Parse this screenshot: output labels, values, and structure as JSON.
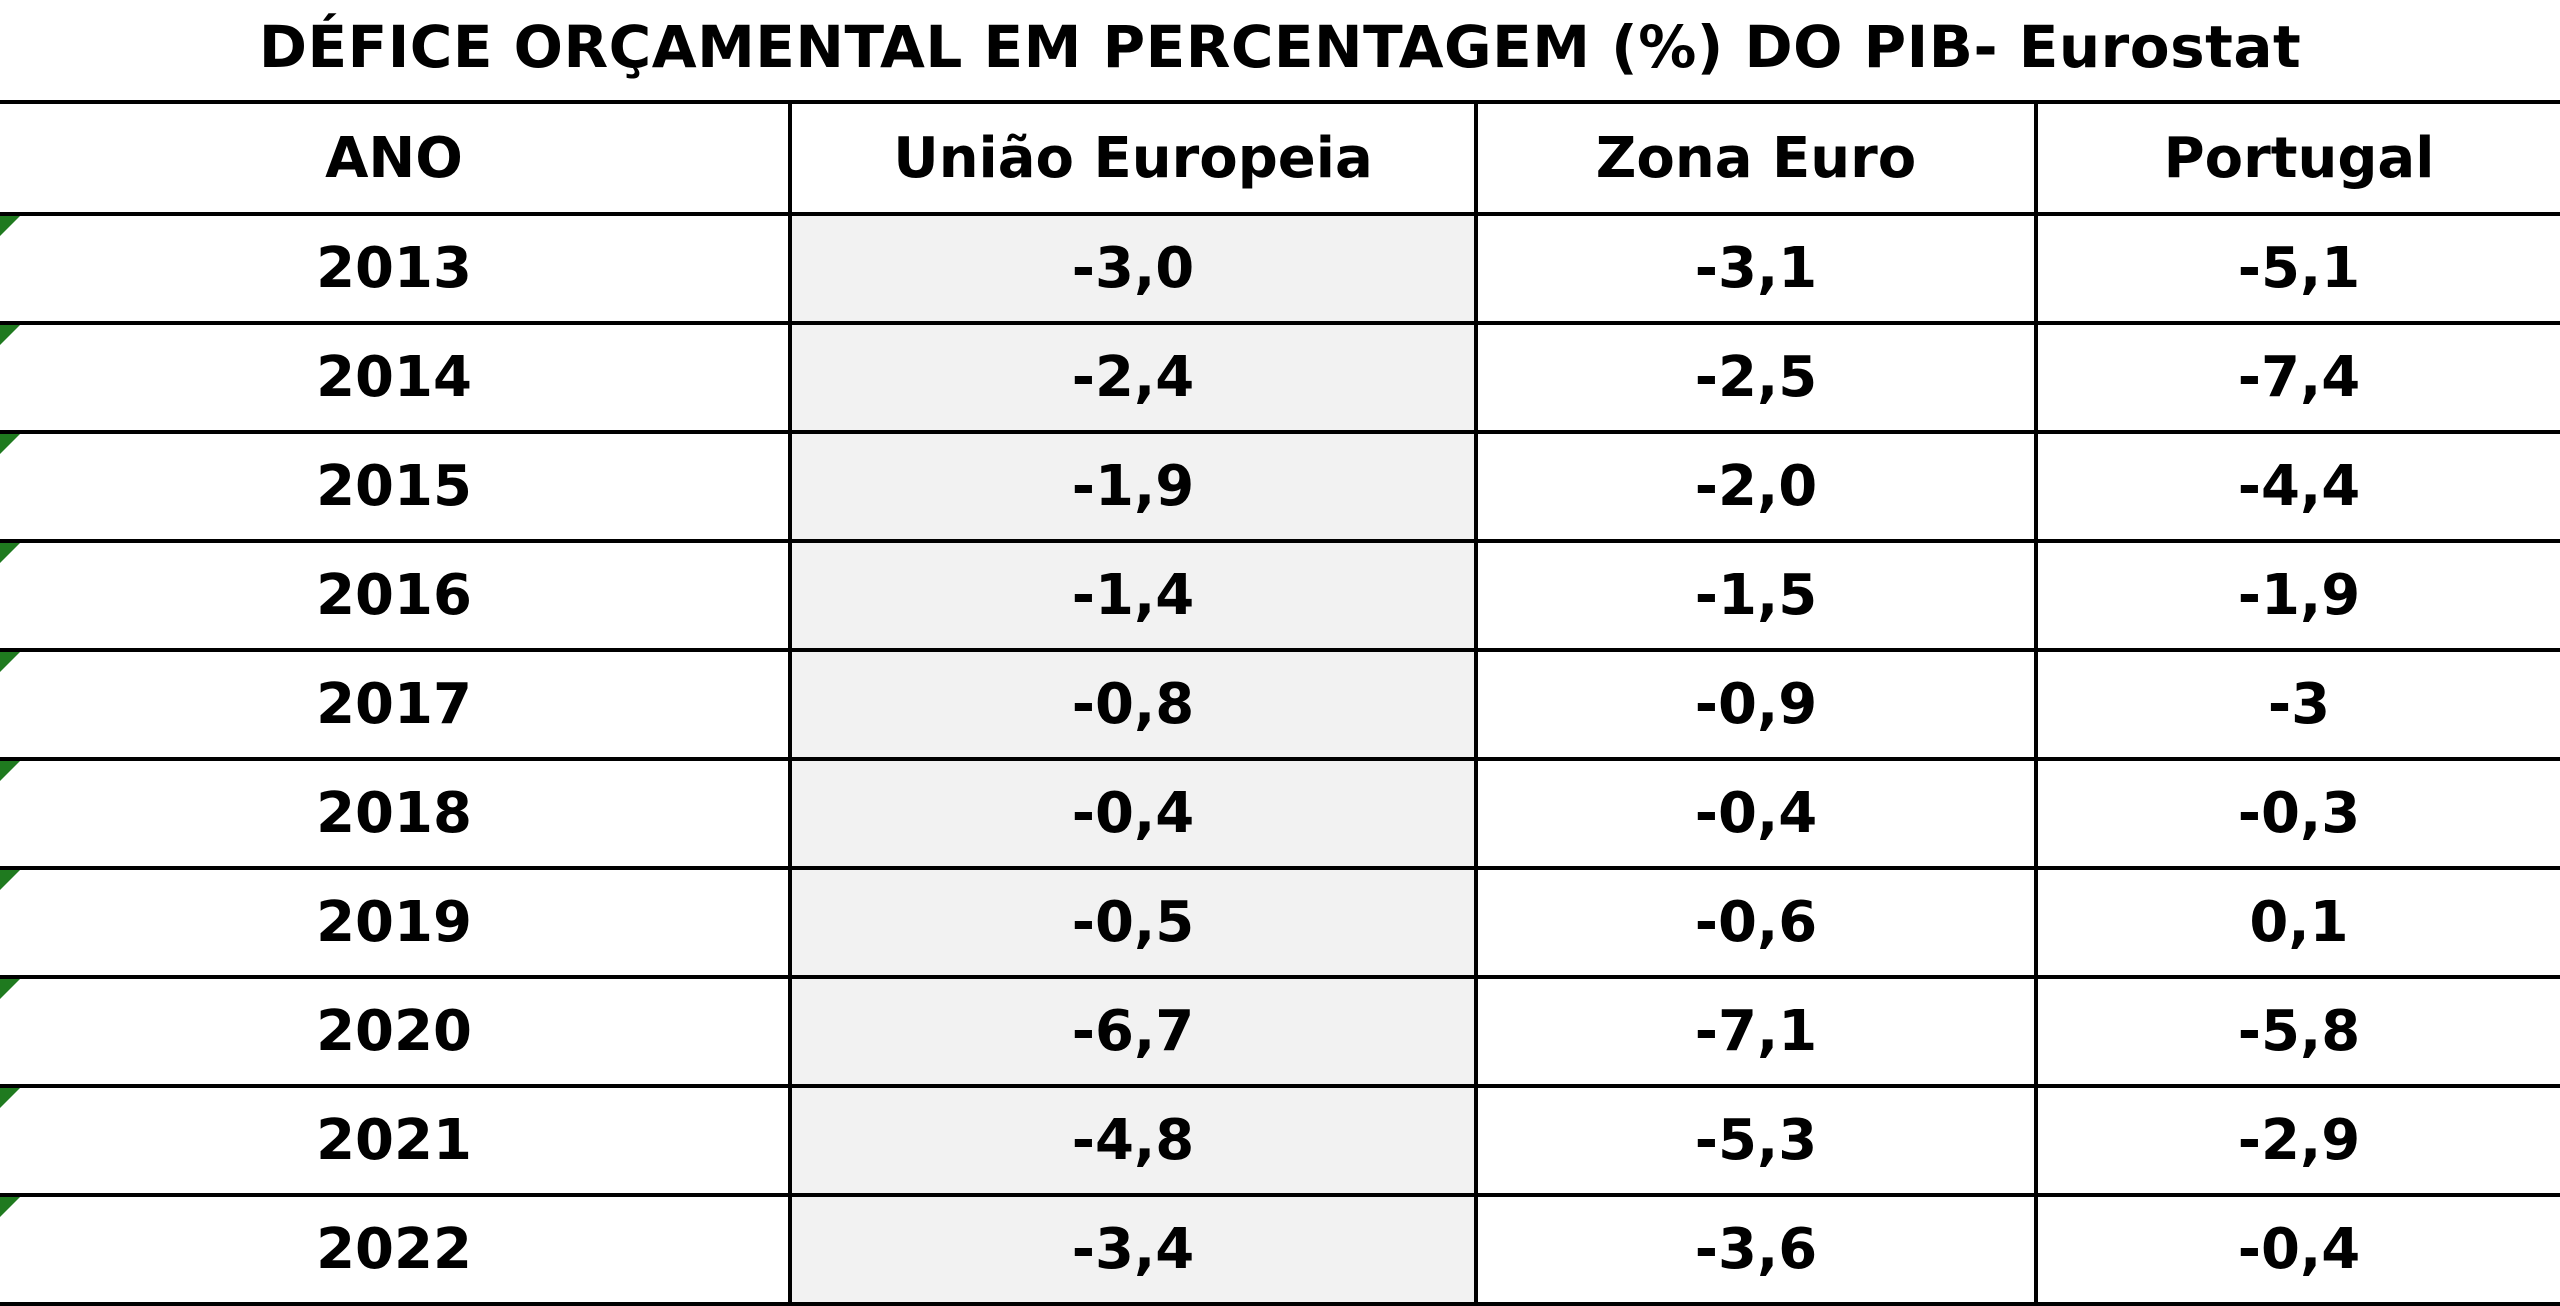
{
  "title": "DÉFICE ORÇAMENTAL EM PERCENTAGEM (%) DO PIB- Eurostat",
  "chart_data": {
    "type": "table",
    "title": "DÉFICE ORÇAMENTAL EM PERCENTAGEM (%) DO PIB- Eurostat",
    "columns": [
      "ANO",
      "União Europeia",
      "Zona Euro",
      "Portugal"
    ],
    "rows": [
      [
        "2013",
        "-3,0",
        "-3,1",
        "-5,1"
      ],
      [
        "2014",
        "-2,4",
        "-2,5",
        "-7,4"
      ],
      [
        "2015",
        "-1,9",
        "-2,0",
        "-4,4"
      ],
      [
        "2016",
        "-1,4",
        "-1,5",
        "-1,9"
      ],
      [
        "2017",
        "-0,8",
        "-0,9",
        "-3"
      ],
      [
        "2018",
        "-0,4",
        "-0,4",
        "-0,3"
      ],
      [
        "2019",
        "-0,5",
        "-0,6",
        "0,1"
      ],
      [
        "2020",
        "-6,7",
        "-7,1",
        "-5,8"
      ],
      [
        "2021",
        "-4,8",
        "-5,3",
        "-2,9"
      ],
      [
        "2022",
        "-3,4",
        "-3,6",
        "-0,4"
      ]
    ]
  },
  "colors": {
    "eu_column_fill": "#f2f2f2",
    "cell_marker": "#1f7a1f",
    "border": "#000000"
  }
}
